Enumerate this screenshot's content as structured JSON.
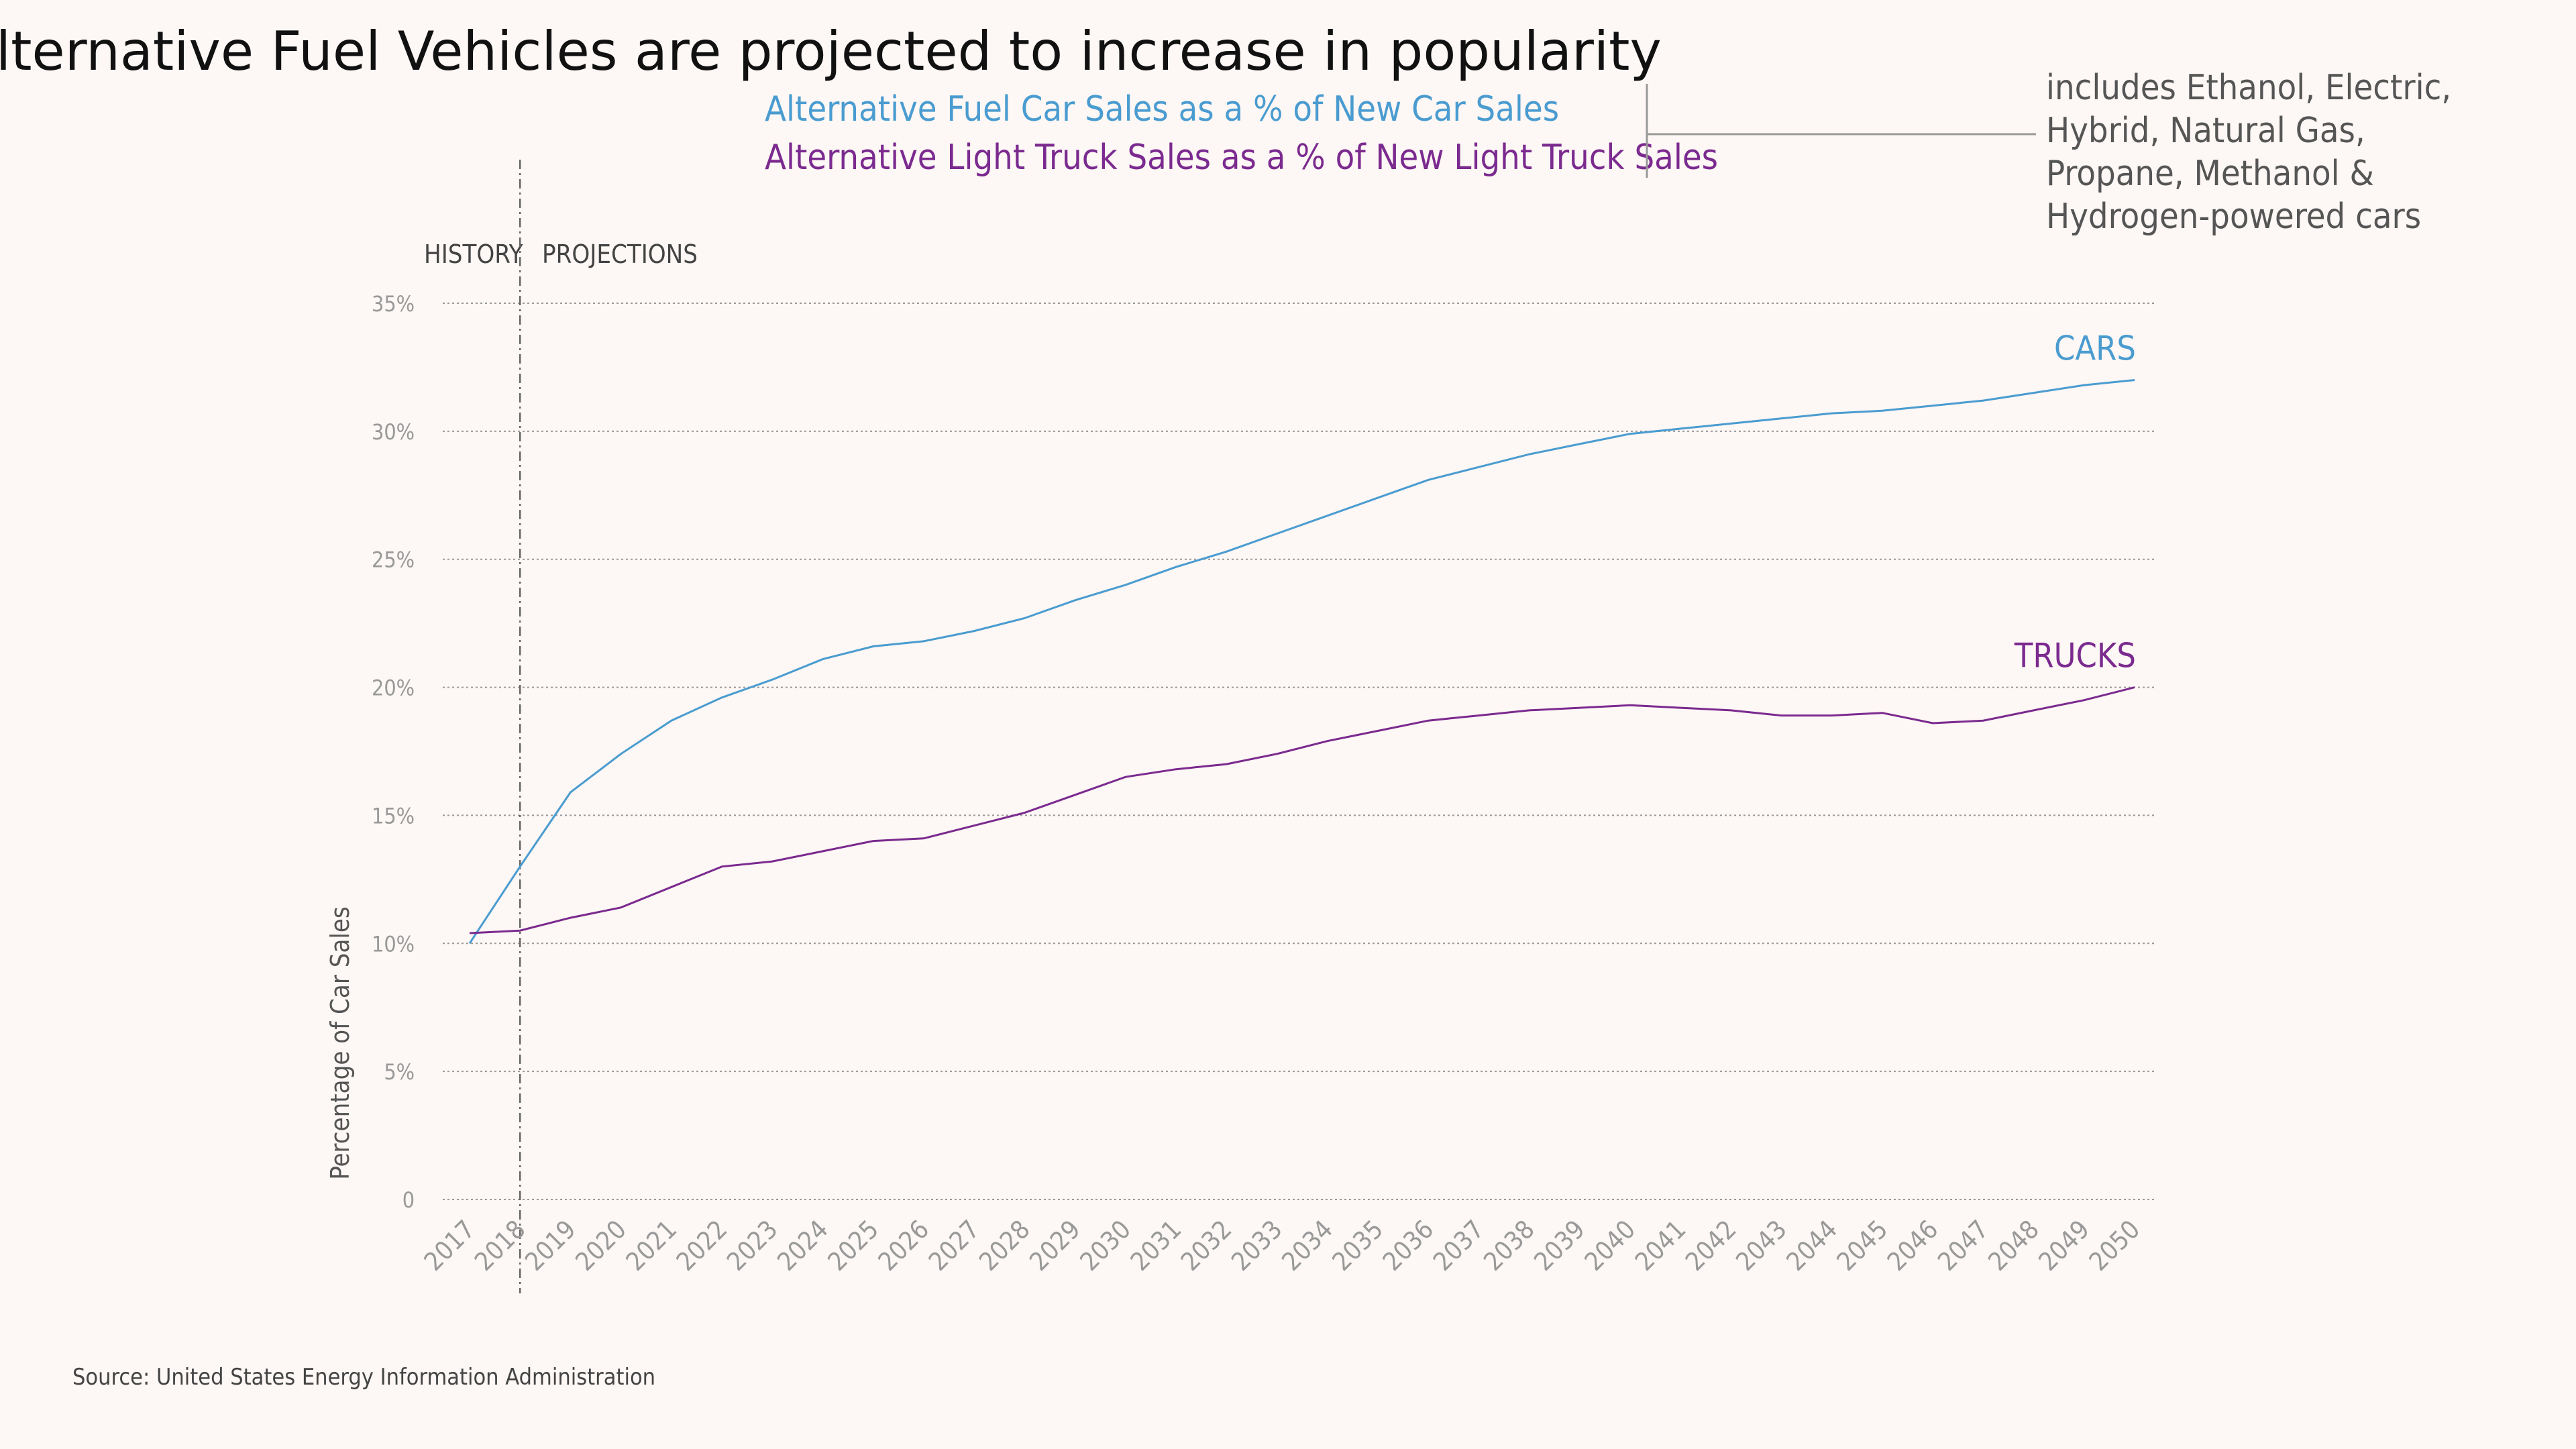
{
  "chart_data": {
    "type": "line",
    "title": "Alternative Fuel Vehicles are projected to increase in popularity",
    "subtitle_lines": [
      "Alternative Fuel Car Sales as a % of New Car Sales",
      "Alternative Light Truck Sales as a % of New Light Truck Sales"
    ],
    "note": [
      "includes Ethanol, Electric,",
      "Hybrid, Natural Gas,",
      "Propane, Methanol &",
      "Hydrogen-powered cars"
    ],
    "ylabel": "Percentage of Car Sales",
    "ylim": [
      0,
      35
    ],
    "y_ticks": [
      0,
      5,
      10,
      15,
      20,
      25,
      30,
      35
    ],
    "y_tick_labels": [
      "0",
      "5%",
      "10%",
      "15%",
      "20%",
      "25%",
      "30%",
      "35%"
    ],
    "history_label": "HISTORY",
    "projections_label": "PROJECTIONS",
    "history_split_year": 2018,
    "grid": true,
    "x": [
      2017,
      2018,
      2019,
      2020,
      2021,
      2022,
      2023,
      2024,
      2025,
      2026,
      2027,
      2028,
      2029,
      2030,
      2031,
      2032,
      2033,
      2034,
      2035,
      2036,
      2037,
      2038,
      2039,
      2040,
      2041,
      2042,
      2043,
      2044,
      2045,
      2046,
      2047,
      2048,
      2049,
      2050
    ],
    "series": [
      {
        "name": "CARS",
        "color": "#4a9cd0",
        "values": [
          10.0,
          13.0,
          15.9,
          17.4,
          18.7,
          19.6,
          20.3,
          21.1,
          21.6,
          21.8,
          22.2,
          22.7,
          23.4,
          24.0,
          24.7,
          25.3,
          26.0,
          26.7,
          27.4,
          28.1,
          28.6,
          29.1,
          29.5,
          29.9,
          30.1,
          30.3,
          30.5,
          30.7,
          30.8,
          31.0,
          31.2,
          31.5,
          31.8,
          32.0
        ]
      },
      {
        "name": "TRUCKS",
        "color": "#7b2a8f",
        "values": [
          10.4,
          10.5,
          11.0,
          11.4,
          12.2,
          13.0,
          13.2,
          13.6,
          14.0,
          14.1,
          14.6,
          15.1,
          15.8,
          16.5,
          16.8,
          17.0,
          17.4,
          17.9,
          18.3,
          18.7,
          18.9,
          19.1,
          19.2,
          19.3,
          19.2,
          19.1,
          18.9,
          18.9,
          19.0,
          18.6,
          18.7,
          19.1,
          19.5,
          20.0
        ]
      }
    ],
    "source": "Source: United States Energy Information Administration"
  }
}
